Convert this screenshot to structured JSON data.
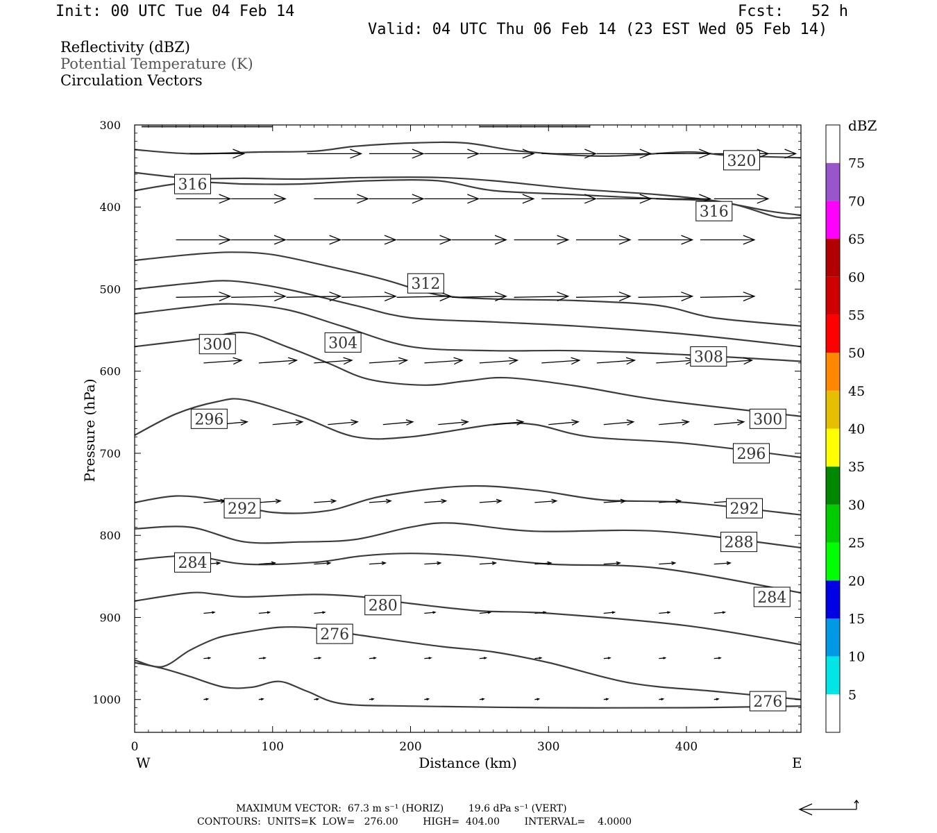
{
  "header": {
    "init": "Init: 00 UTC Tue 04 Feb 14",
    "fcst": "Fcst:   52 h",
    "valid": "Valid: 04 UTC Thu 06 Feb 14 (23 EST Wed 05 Feb 14)"
  },
  "fields": {
    "reflectivity": "Reflectivity (dBZ)",
    "theta": "Potential Temperature (K)",
    "vectors": "Circulation Vectors"
  },
  "footer": {
    "max_vector": "MAXIMUM VECTOR:  67.3 m s⁻¹ (HORIZ)        19.6 dPa s⁻¹ (VERT)",
    "contours": "CONTOURS:  UNITS=K  LOW=   276.00        HIGH=  404.00        INTERVAL=    4.0000"
  },
  "colors": {
    "contour": "#3c3c3c",
    "colorbar": [
      "#ffffff",
      "#00e5e5",
      "#0099e5",
      "#0000e5",
      "#00ff00",
      "#00cc00",
      "#008800",
      "#ffff00",
      "#e5bf00",
      "#ff8800",
      "#ff0000",
      "#d10000",
      "#b20000",
      "#ff00ff",
      "#9955cc",
      "#ffffff"
    ]
  },
  "chart_data": {
    "type": "contour-cross-section",
    "xlabel": "Distance (km)",
    "ylabel": "Pressure (hPa)",
    "xlim": [
      0,
      483
    ],
    "ylim": [
      1040,
      300
    ],
    "xticks": [
      0,
      100,
      200,
      300,
      400
    ],
    "yticks": [
      300,
      400,
      500,
      600,
      700,
      800,
      900,
      1000
    ],
    "x_end_labels": {
      "left": "W",
      "right": "E"
    },
    "colorbar": {
      "unit": "dBZ",
      "levels": [
        5,
        10,
        15,
        20,
        25,
        30,
        35,
        40,
        45,
        50,
        55,
        60,
        65,
        70,
        75
      ]
    },
    "contours": [
      {
        "level": 276,
        "points": [
          [
            0,
            955
          ],
          [
            20,
            962
          ],
          [
            40,
            972
          ],
          [
            65,
            985
          ],
          [
            85,
            985
          ],
          [
            105,
            978
          ],
          [
            125,
            990
          ],
          [
            150,
            1005
          ],
          [
            200,
            1008
          ],
          [
            300,
            1010
          ],
          [
            400,
            1010
          ],
          [
            483,
            1008
          ]
        ]
      },
      {
        "level": 276,
        "points": [
          [
            0,
            952
          ],
          [
            20,
            960
          ],
          [
            40,
            940
          ],
          [
            60,
            925
          ],
          [
            80,
            918
          ],
          [
            105,
            912
          ],
          [
            130,
            913
          ],
          [
            165,
            922
          ],
          [
            220,
            935
          ],
          [
            260,
            942
          ],
          [
            300,
            955
          ],
          [
            360,
            980
          ],
          [
            420,
            990
          ],
          [
            483,
            1000
          ]
        ]
      },
      {
        "level": 280,
        "points": [
          [
            0,
            880
          ],
          [
            40,
            870
          ],
          [
            60,
            872
          ],
          [
            80,
            875
          ],
          [
            130,
            872
          ],
          [
            165,
            875
          ],
          [
            200,
            883
          ],
          [
            250,
            892
          ],
          [
            300,
            895
          ],
          [
            400,
            910
          ],
          [
            483,
            933
          ]
        ]
      },
      {
        "level": 284,
        "points": [
          [
            0,
            830
          ],
          [
            40,
            825
          ],
          [
            80,
            835
          ],
          [
            130,
            833
          ],
          [
            165,
            825
          ],
          [
            200,
            822
          ],
          [
            240,
            825
          ],
          [
            300,
            835
          ],
          [
            380,
            840
          ],
          [
            483,
            870
          ]
        ]
      },
      {
        "level": 288,
        "points": [
          [
            0,
            792
          ],
          [
            40,
            790
          ],
          [
            80,
            808
          ],
          [
            120,
            808
          ],
          [
            160,
            805
          ],
          [
            200,
            790
          ],
          [
            230,
            785
          ],
          [
            290,
            795
          ],
          [
            380,
            795
          ],
          [
            483,
            815
          ]
        ]
      },
      {
        "level": 292,
        "points": [
          [
            0,
            760
          ],
          [
            30,
            752
          ],
          [
            60,
            757
          ],
          [
            100,
            772
          ],
          [
            140,
            770
          ],
          [
            180,
            752
          ],
          [
            240,
            740
          ],
          [
            290,
            745
          ],
          [
            340,
            757
          ],
          [
            400,
            760
          ],
          [
            483,
            775
          ]
        ]
      },
      {
        "level": 296,
        "points": [
          [
            0,
            678
          ],
          [
            30,
            652
          ],
          [
            60,
            637
          ],
          [
            80,
            635
          ],
          [
            120,
            655
          ],
          [
            160,
            680
          ],
          [
            200,
            680
          ],
          [
            260,
            665
          ],
          [
            290,
            665
          ],
          [
            330,
            680
          ],
          [
            400,
            688
          ],
          [
            483,
            705
          ]
        ]
      },
      {
        "level": 300,
        "points": [
          [
            0,
            570
          ],
          [
            50,
            560
          ],
          [
            80,
            553
          ],
          [
            110,
            570
          ],
          [
            140,
            590
          ],
          [
            170,
            610
          ],
          [
            210,
            617
          ],
          [
            240,
            612
          ],
          [
            270,
            608
          ],
          [
            320,
            618
          ],
          [
            380,
            635
          ],
          [
            483,
            655
          ]
        ]
      },
      {
        "level": 304,
        "points": [
          [
            0,
            530
          ],
          [
            40,
            522
          ],
          [
            70,
            518
          ],
          [
            110,
            525
          ],
          [
            150,
            545
          ],
          [
            200,
            570
          ],
          [
            260,
            575
          ],
          [
            320,
            575
          ],
          [
            400,
            580
          ],
          [
            483,
            588
          ]
        ]
      },
      {
        "level": 308,
        "points": [
          [
            0,
            500
          ],
          [
            40,
            493
          ],
          [
            70,
            490
          ],
          [
            110,
            500
          ],
          [
            160,
            520
          ],
          [
            200,
            535
          ],
          [
            260,
            540
          ],
          [
            320,
            545
          ],
          [
            400,
            555
          ],
          [
            483,
            570
          ]
        ]
      },
      {
        "level": 312,
        "points": [
          [
            0,
            465
          ],
          [
            40,
            458
          ],
          [
            70,
            455
          ],
          [
            100,
            458
          ],
          [
            140,
            472
          ],
          [
            180,
            488
          ],
          [
            220,
            507
          ],
          [
            260,
            512
          ],
          [
            320,
            514
          ],
          [
            380,
            520
          ],
          [
            420,
            535
          ],
          [
            483,
            545
          ]
        ]
      },
      {
        "level": 316,
        "points": [
          [
            0,
            380
          ],
          [
            40,
            370
          ],
          [
            80,
            372
          ],
          [
            120,
            372
          ],
          [
            170,
            368
          ],
          [
            220,
            368
          ],
          [
            260,
            380
          ],
          [
            320,
            385
          ],
          [
            380,
            390
          ],
          [
            420,
            393
          ],
          [
            460,
            405
          ],
          [
            483,
            410
          ]
        ]
      },
      {
        "level": 316,
        "points": [
          [
            0,
            358
          ],
          [
            40,
            365
          ],
          [
            80,
            365
          ],
          [
            120,
            366
          ],
          [
            170,
            364
          ],
          [
            220,
            364
          ],
          [
            260,
            368
          ],
          [
            320,
            378
          ],
          [
            380,
            385
          ],
          [
            430,
            395
          ],
          [
            465,
            412
          ],
          [
            483,
            413
          ]
        ]
      },
      {
        "level": 320,
        "points": [
          [
            0,
            330
          ],
          [
            40,
            335
          ],
          [
            90,
            333
          ],
          [
            130,
            332
          ],
          [
            160,
            326
          ],
          [
            200,
            322
          ],
          [
            240,
            322
          ],
          [
            280,
            332
          ],
          [
            340,
            338
          ],
          [
            400,
            333
          ],
          [
            430,
            337
          ],
          [
            483,
            340
          ]
        ]
      },
      {
        "level": 0,
        "points": [
          [
            5,
            302
          ],
          [
            100,
            302
          ]
        ]
      },
      {
        "level": 0,
        "points": [
          [
            250,
            302
          ],
          [
            330,
            302
          ]
        ]
      }
    ],
    "contour_labels": [
      {
        "text": "316",
        "x": 42,
        "p": 372
      },
      {
        "text": "320",
        "x": 440,
        "p": 343
      },
      {
        "text": "316",
        "x": 420,
        "p": 405
      },
      {
        "text": "312",
        "x": 211,
        "p": 493
      },
      {
        "text": "300",
        "x": 60,
        "p": 567
      },
      {
        "text": "304",
        "x": 151,
        "p": 565
      },
      {
        "text": "308",
        "x": 416,
        "p": 582
      },
      {
        "text": "296",
        "x": 54,
        "p": 658
      },
      {
        "text": "300",
        "x": 459,
        "p": 658
      },
      {
        "text": "296",
        "x": 447,
        "p": 700
      },
      {
        "text": "292",
        "x": 78,
        "p": 767
      },
      {
        "text": "292",
        "x": 442,
        "p": 767
      },
      {
        "text": "288",
        "x": 438,
        "p": 808
      },
      {
        "text": "284",
        "x": 42,
        "p": 833
      },
      {
        "text": "284",
        "x": 462,
        "p": 875
      },
      {
        "text": "280",
        "x": 180,
        "p": 885
      },
      {
        "text": "276",
        "x": 145,
        "p": 920
      },
      {
        "text": "276",
        "x": 459,
        "p": 1002
      }
    ],
    "vectors": [
      {
        "p": 335,
        "x": [
          40,
          125,
          170,
          210,
          250,
          295,
          335,
          378,
          420,
          440
        ],
        "u": 1.0,
        "w": 0.0
      },
      {
        "p": 390,
        "x": [
          30,
          70,
          130,
          170,
          210,
          250,
          295,
          335,
          378,
          420
        ],
        "u": 1.0,
        "w": 0.0
      },
      {
        "p": 440,
        "x": [
          30,
          70,
          110,
          150,
          190,
          230,
          275,
          320,
          365,
          410
        ],
        "u": 1.0,
        "w": 0.0
      },
      {
        "p": 510,
        "x": [
          30,
          70,
          110,
          150,
          190,
          230,
          275,
          320,
          365,
          410
        ],
        "u": 1.0,
        "w": 0.02
      },
      {
        "p": 590,
        "x": [
          50,
          90,
          130,
          170,
          210,
          250,
          295,
          335,
          378,
          420
        ],
        "u": 0.7,
        "w": 0.05
      },
      {
        "p": 665,
        "x": [
          60,
          100,
          140,
          180,
          220,
          260,
          300,
          340,
          380,
          420
        ],
        "u": 0.55,
        "w": 0.05
      },
      {
        "p": 760,
        "x": [
          50,
          90,
          130,
          170,
          210,
          250,
          290,
          340,
          380,
          420
        ],
        "u": 0.4,
        "w": 0.03
      },
      {
        "p": 835,
        "x": [
          50,
          90,
          130,
          170,
          210,
          250,
          290,
          340,
          380,
          420
        ],
        "u": 0.3,
        "w": 0.02
      },
      {
        "p": 895,
        "x": [
          50,
          90,
          130,
          170,
          210,
          250,
          290,
          340,
          380,
          420
        ],
        "u": 0.2,
        "w": 0.02
      },
      {
        "p": 950,
        "x": [
          50,
          90,
          130,
          170,
          210,
          250,
          290,
          340,
          380,
          420
        ],
        "u": 0.12,
        "w": 0.01
      },
      {
        "p": 1000,
        "x": [
          50,
          90,
          130,
          170,
          210,
          250,
          290,
          340,
          380,
          420
        ],
        "u": 0.08,
        "w": 0.01
      }
    ]
  }
}
